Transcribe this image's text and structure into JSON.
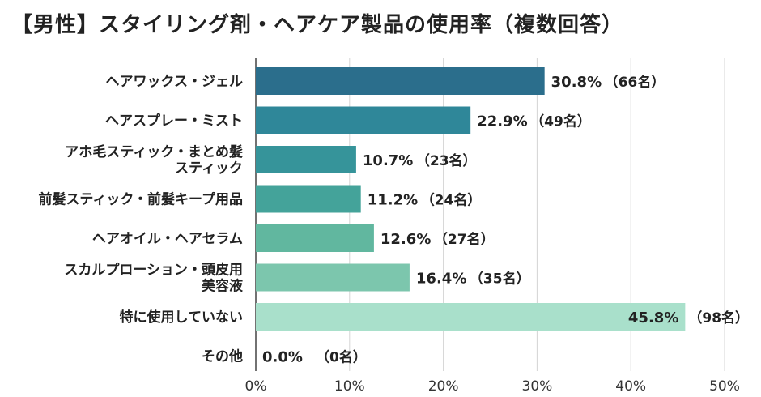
{
  "chart_data": {
    "type": "bar",
    "orientation": "horizontal",
    "title": "【男性】スタイリング剤・ヘアケア製品の使用率（複数回答）",
    "xlabel": "",
    "ylabel": "",
    "xlim": [
      0,
      50
    ],
    "x_ticks": [
      "0%",
      "10%",
      "20%",
      "30%",
      "40%",
      "50%"
    ],
    "grid": true,
    "categories": [
      [
        "ヘアワックス・ジェル"
      ],
      [
        "ヘアスプレー・ミスト"
      ],
      [
        "アホ毛スティック・まとめ髪",
        "スティック"
      ],
      [
        "前髪スティック・前髪キープ用品"
      ],
      [
        "ヘアオイル・ヘアセラム"
      ],
      [
        "スカルプローション・頭皮用",
        "美容液"
      ],
      [
        "特に使用していない"
      ],
      [
        "その他"
      ]
    ],
    "values": [
      30.8,
      22.9,
      10.7,
      11.2,
      12.6,
      16.4,
      45.8,
      0.0
    ],
    "value_labels": [
      "30.8%",
      "22.9%",
      "10.7%",
      "11.2%",
      "12.6%",
      "16.4%",
      "45.8%",
      "0.0%"
    ],
    "count_labels": [
      "（66名）",
      "（49名）",
      "（23名）",
      "（24名）",
      "（27名）",
      "（35名）",
      "（98名）",
      "（0名）"
    ],
    "colors": [
      "#2b6e8c",
      "#2f8799",
      "#36949a",
      "#44a39a",
      "#61b79f",
      "#7cc6ad",
      "#a9e0cb",
      "#c9eede"
    ]
  }
}
